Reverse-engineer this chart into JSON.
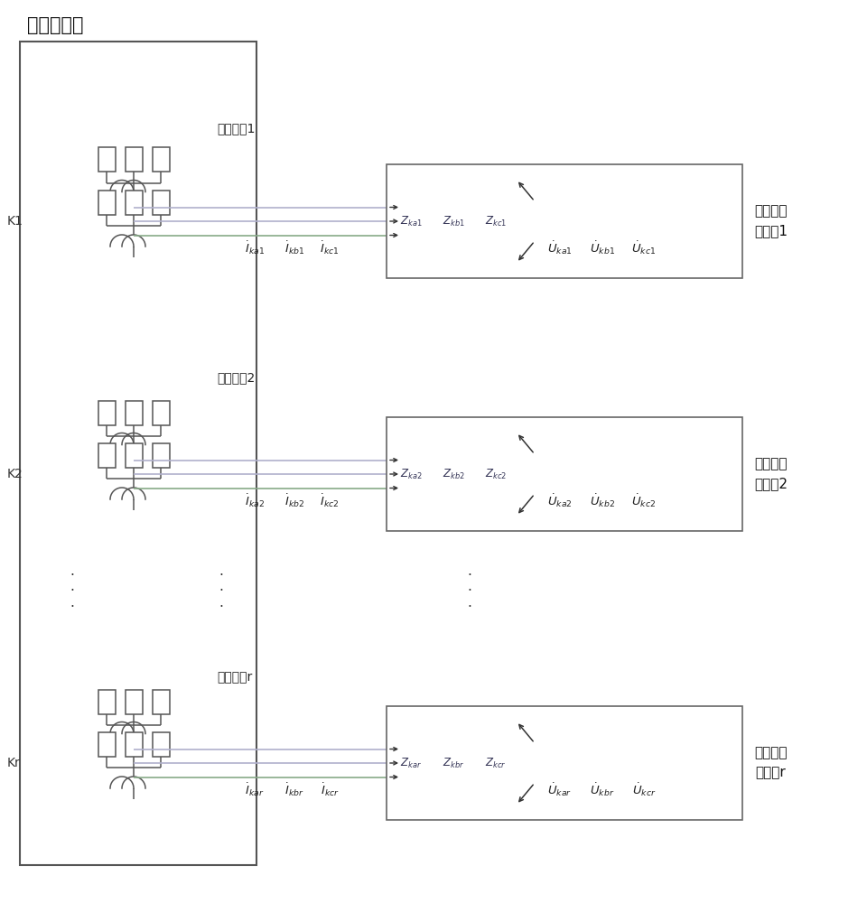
{
  "bg_color": "#ffffff",
  "title": "正常子网络",
  "fault_ports": [
    "故障端口1",
    "故障端口2",
    "故障端口r"
  ],
  "k_labels": [
    "K1",
    "K2",
    "Kr"
  ],
  "fault_subnet_labels": [
    "纵向故障\n子网络1",
    "纵向故障\n子网络2",
    "纵向故障\n子网络r"
  ],
  "current_labels_1": [
    "$\\dot{I}_{ka1}$",
    "$\\dot{I}_{kb1}$",
    "$\\dot{I}_{kc1}$"
  ],
  "current_labels_2": [
    "$\\dot{I}_{ka2}$",
    "$\\dot{I}_{kb2}$",
    "$\\dot{I}_{kc2}$"
  ],
  "current_labels_r": [
    "$\\dot{I}_{kar}$",
    "$\\dot{I}_{kbr}$",
    "$\\dot{I}_{kcr}$"
  ],
  "z_labels_1": [
    "$Z_{ka1}$",
    "$Z_{kb1}$",
    "$Z_{kc1}$"
  ],
  "z_labels_2": [
    "$Z_{ka2}$",
    "$Z_{kb2}$",
    "$Z_{kc2}$"
  ],
  "z_labels_r": [
    "$Z_{kar}$",
    "$Z_{kbr}$",
    "$Z_{kcr}$"
  ],
  "u_labels_1": [
    "$\\dot{U}_{ka1}$",
    "$\\dot{U}_{kb1}$",
    "$\\dot{U}_{kc1}$"
  ],
  "u_labels_2": [
    "$\\dot{U}_{ka2}$",
    "$\\dot{U}_{kb2}$",
    "$\\dot{U}_{kc2}$"
  ],
  "u_labels_r": [
    "$\\dot{U}_{kar}$",
    "$\\dot{U}_{kbr}$",
    "$\\dot{U}_{kcr}$"
  ],
  "line_colors": [
    "#aaaacc",
    "#aaaacc",
    "#88bb88"
  ],
  "box_color": "#aaaaaa",
  "subnet_box_color": "#888888"
}
